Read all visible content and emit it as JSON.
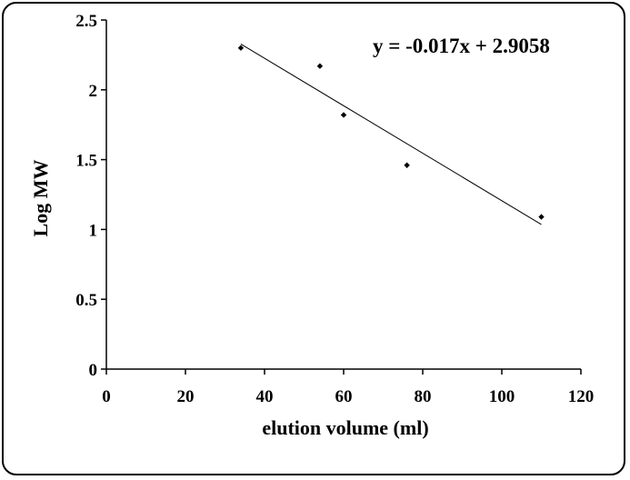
{
  "chart_data": {
    "type": "scatter",
    "title": "",
    "xlabel": "elution volume (ml)",
    "ylabel": "Log  MW",
    "xlim": [
      0,
      120
    ],
    "ylim": [
      0,
      2.5
    ],
    "x_ticks": [
      "0",
      "20",
      "40",
      "60",
      "80",
      "100",
      "120"
    ],
    "y_ticks": [
      "0",
      "0.5",
      "1",
      "1.5",
      "2",
      "2.5"
    ],
    "grid": false,
    "legend": "none",
    "series": [
      {
        "x": [
          34,
          54,
          60,
          76,
          110
        ],
        "y": [
          2.3,
          2.17,
          1.82,
          1.46,
          1.09
        ]
      }
    ],
    "trendline": {
      "slope": -0.017,
      "intercept": 2.9058,
      "x_range": [
        34,
        110
      ],
      "label": "y = -0.017x + 2.9058"
    },
    "colors": {
      "points": "#000000",
      "line": "#000000"
    }
  }
}
